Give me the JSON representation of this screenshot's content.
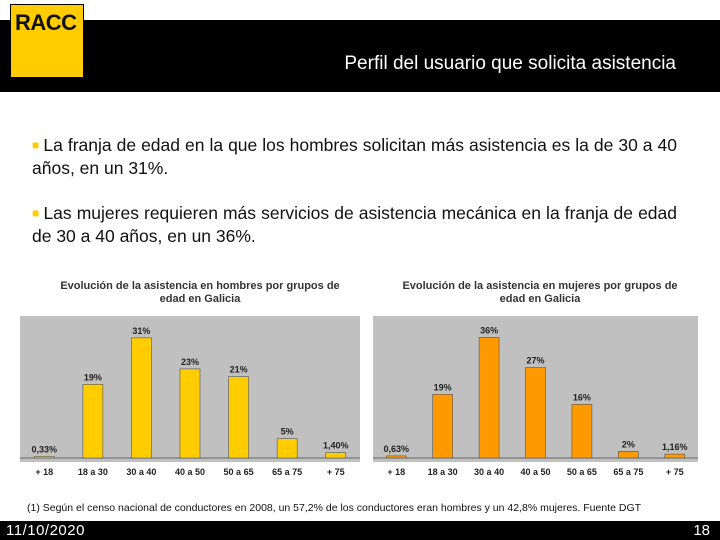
{
  "header": {
    "logo_text": "RACC",
    "title": "Perfil del usuario que solicita asistencia"
  },
  "bullets": [
    "La franja de edad en la que los hombres solicitan más asistencia es la de 30 a 40 años, en un 31%.",
    "Las mujeres requieren más servicios de asistencia mecánica en la franja de edad de 30 a 40 años, en un 36%."
  ],
  "colors": {
    "men_bar": "#ffcc00",
    "women_bar": "#ff9900",
    "plot_bg": "#c0c0c0",
    "accent": "#ffcc00"
  },
  "chart_data": [
    {
      "type": "bar",
      "title": "Evolución de la asistencia en hombres por grupos de edad en Galicia",
      "categories": [
        "+ 18",
        "18 a 30",
        "30 a 40",
        "40 a 50",
        "50 a 65",
        "65 a 75",
        "+ 75"
      ],
      "values": [
        0.33,
        19,
        31,
        23,
        21,
        5,
        1.4
      ],
      "data_labels": [
        "0,33%",
        "19%",
        "31%",
        "23%",
        "21%",
        "5%",
        "1,40%"
      ],
      "ylim": [
        0,
        32
      ],
      "xlabel": "",
      "ylabel": ""
    },
    {
      "type": "bar",
      "title": "Evolución de la asistencia en mujeres por grupos de edad en Galicia",
      "categories": [
        "+ 18",
        "18 a 30",
        "30 a 40",
        "40 a 50",
        "50 a 65",
        "65 a 75",
        "+ 75"
      ],
      "values": [
        0.63,
        19,
        36,
        27,
        16,
        2,
        1.16
      ],
      "data_labels": [
        "0,63%",
        "19%",
        "36%",
        "27%",
        "16%",
        "2%",
        "1,16%"
      ],
      "ylim": [
        0,
        37
      ],
      "xlabel": "",
      "ylabel": ""
    }
  ],
  "footnote": "(1) Según el censo nacional de conductores en 2008, un 57,2% de los conductores eran hombres y un 42,8% mujeres. Fuente DGT",
  "footer": {
    "date": "11/10/2020",
    "page": "18"
  }
}
